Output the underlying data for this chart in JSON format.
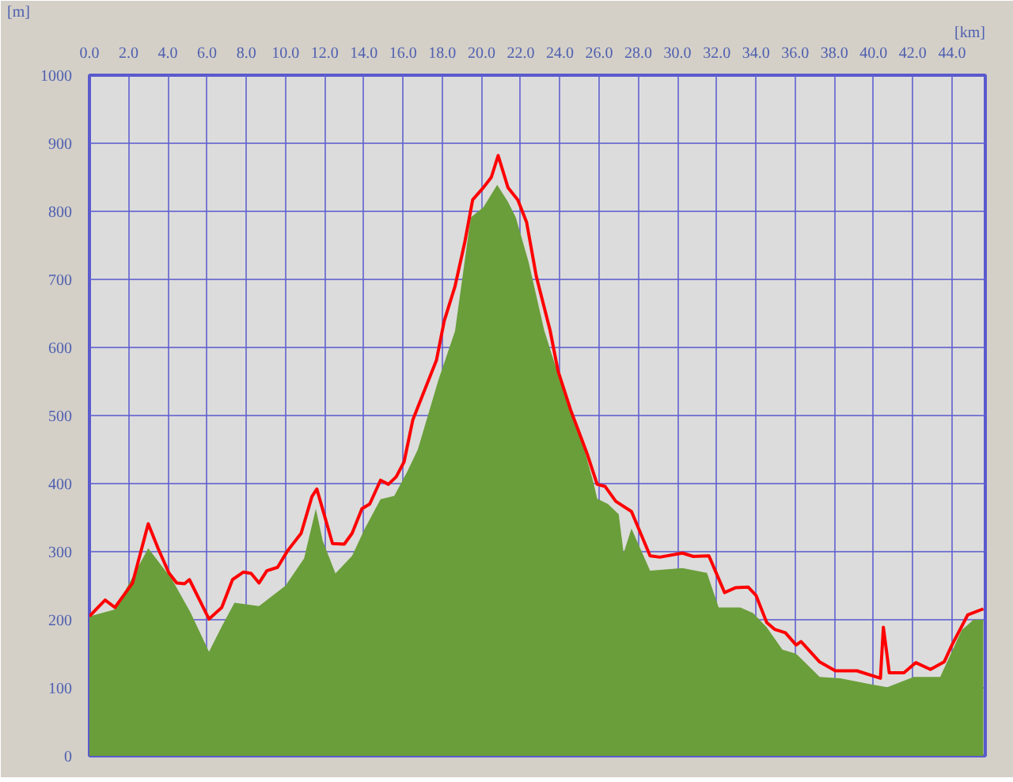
{
  "chart_data": {
    "type": "line",
    "xlabel": "[km]",
    "ylabel": "[m]",
    "xlim": [
      0,
      45.7
    ],
    "ylim": [
      0,
      1000
    ],
    "xticks": [
      {
        "value": 0,
        "label": "0.0"
      },
      {
        "value": 2,
        "label": "2.0"
      },
      {
        "value": 4,
        "label": "4.0"
      },
      {
        "value": 6,
        "label": "6.0"
      },
      {
        "value": 8,
        "label": "8.0"
      },
      {
        "value": 10,
        "label": "10.0"
      },
      {
        "value": 12,
        "label": "12.0"
      },
      {
        "value": 14,
        "label": "14.0"
      },
      {
        "value": 16,
        "label": "16.0"
      },
      {
        "value": 18,
        "label": "18.0"
      },
      {
        "value": 20,
        "label": "20.0"
      },
      {
        "value": 22,
        "label": "22.0"
      },
      {
        "value": 24,
        "label": "24.0"
      },
      {
        "value": 26,
        "label": "26.0"
      },
      {
        "value": 28,
        "label": "28.0"
      },
      {
        "value": 30,
        "label": "30.0"
      },
      {
        "value": 32,
        "label": "32.0"
      },
      {
        "value": 34,
        "label": "34.0"
      },
      {
        "value": 36,
        "label": "36.0"
      },
      {
        "value": 38,
        "label": "38.0"
      },
      {
        "value": 40,
        "label": "40.0"
      },
      {
        "value": 42,
        "label": "42.0"
      },
      {
        "value": 44,
        "label": "44.0"
      }
    ],
    "yticks": [
      0,
      100,
      200,
      300,
      400,
      500,
      600,
      700,
      800,
      900,
      1000
    ],
    "grid": true,
    "series": [
      {
        "type": "area",
        "color": "#6a9e3a",
        "x": [
          0,
          1.3,
          3.0,
          4.2,
          5.15,
          6.1,
          6.75,
          7.4,
          8.65,
          10.0,
          10.95,
          11.55,
          11.9,
          12.55,
          13.4,
          14.05,
          14.85,
          15.55,
          16.2,
          16.75,
          17.8,
          18.65,
          19.45,
          20.1,
          20.8,
          21.35,
          21.75,
          22.4,
          23.2,
          24.0,
          25.1,
          25.7,
          25.9,
          26.45,
          27.0,
          27.25,
          27.65,
          28.6,
          30.25,
          31.5,
          32.1,
          33.2,
          33.85,
          34.55,
          35.35,
          36.05,
          37.25,
          38.3,
          39.9,
          40.7,
          42.05,
          43.4,
          44.5,
          45.1,
          45.6
        ],
        "values": [
          205,
          215,
          305,
          260,
          211,
          153,
          190,
          225,
          220,
          250,
          290,
          363,
          316,
          268,
          294,
          334,
          377,
          382,
          417,
          450,
          552,
          624,
          791,
          806,
          839,
          814,
          791,
          726,
          625,
          552,
          465,
          403,
          378,
          370,
          355,
          298,
          334,
          272,
          276,
          269,
          218,
          218,
          210,
          189,
          156,
          150,
          116,
          114,
          105,
          101,
          116,
          116,
          185,
          200,
          200
        ]
      },
      {
        "color": "#ff0000",
        "x": [
          0,
          0.8,
          1.3,
          2.2,
          3.0,
          3.5,
          4.05,
          4.45,
          4.85,
          5.1,
          6.1,
          6.75,
          7.3,
          7.85,
          8.25,
          8.65,
          9.05,
          9.6,
          10.1,
          10.8,
          11.35,
          11.6,
          12.4,
          13.0,
          13.4,
          13.9,
          14.3,
          14.85,
          15.25,
          15.65,
          16.05,
          16.5,
          17.7,
          18.1,
          18.65,
          19.15,
          19.55,
          20.1,
          20.5,
          20.85,
          21.35,
          21.85,
          22.3,
          22.8,
          23.5,
          23.9,
          24.55,
          25.4,
          25.9,
          26.3,
          26.85,
          27.65,
          28.6,
          29.1,
          30.25,
          30.8,
          31.6,
          32.4,
          32.95,
          33.6,
          34.0,
          34.55,
          34.95,
          35.5,
          36.05,
          36.3,
          37.25,
          38.05,
          39.15,
          40.35,
          40.5,
          40.7,
          40.8,
          41.55,
          42.15,
          42.9,
          43.6,
          44.0,
          44.8,
          45.6
        ],
        "values": [
          205,
          229,
          218,
          254,
          341,
          305,
          269,
          254,
          253,
          259,
          201,
          218,
          259,
          270,
          268,
          254,
          272,
          277,
          301,
          327,
          381,
          392,
          312,
          311,
          327,
          363,
          370,
          405,
          399,
          410,
          432,
          494,
          581,
          639,
          690,
          755,
          817,
          835,
          850,
          882,
          835,
          817,
          784,
          704,
          625,
          566,
          508,
          443,
          399,
          396,
          374,
          359,
          294,
          292,
          298,
          293,
          294,
          240,
          247,
          248,
          236,
          196,
          186,
          181,
          163,
          168,
          138,
          125,
          125,
          114,
          189,
          145,
          122,
          122,
          137,
          127,
          138,
          163,
          207,
          216
        ]
      }
    ]
  }
}
